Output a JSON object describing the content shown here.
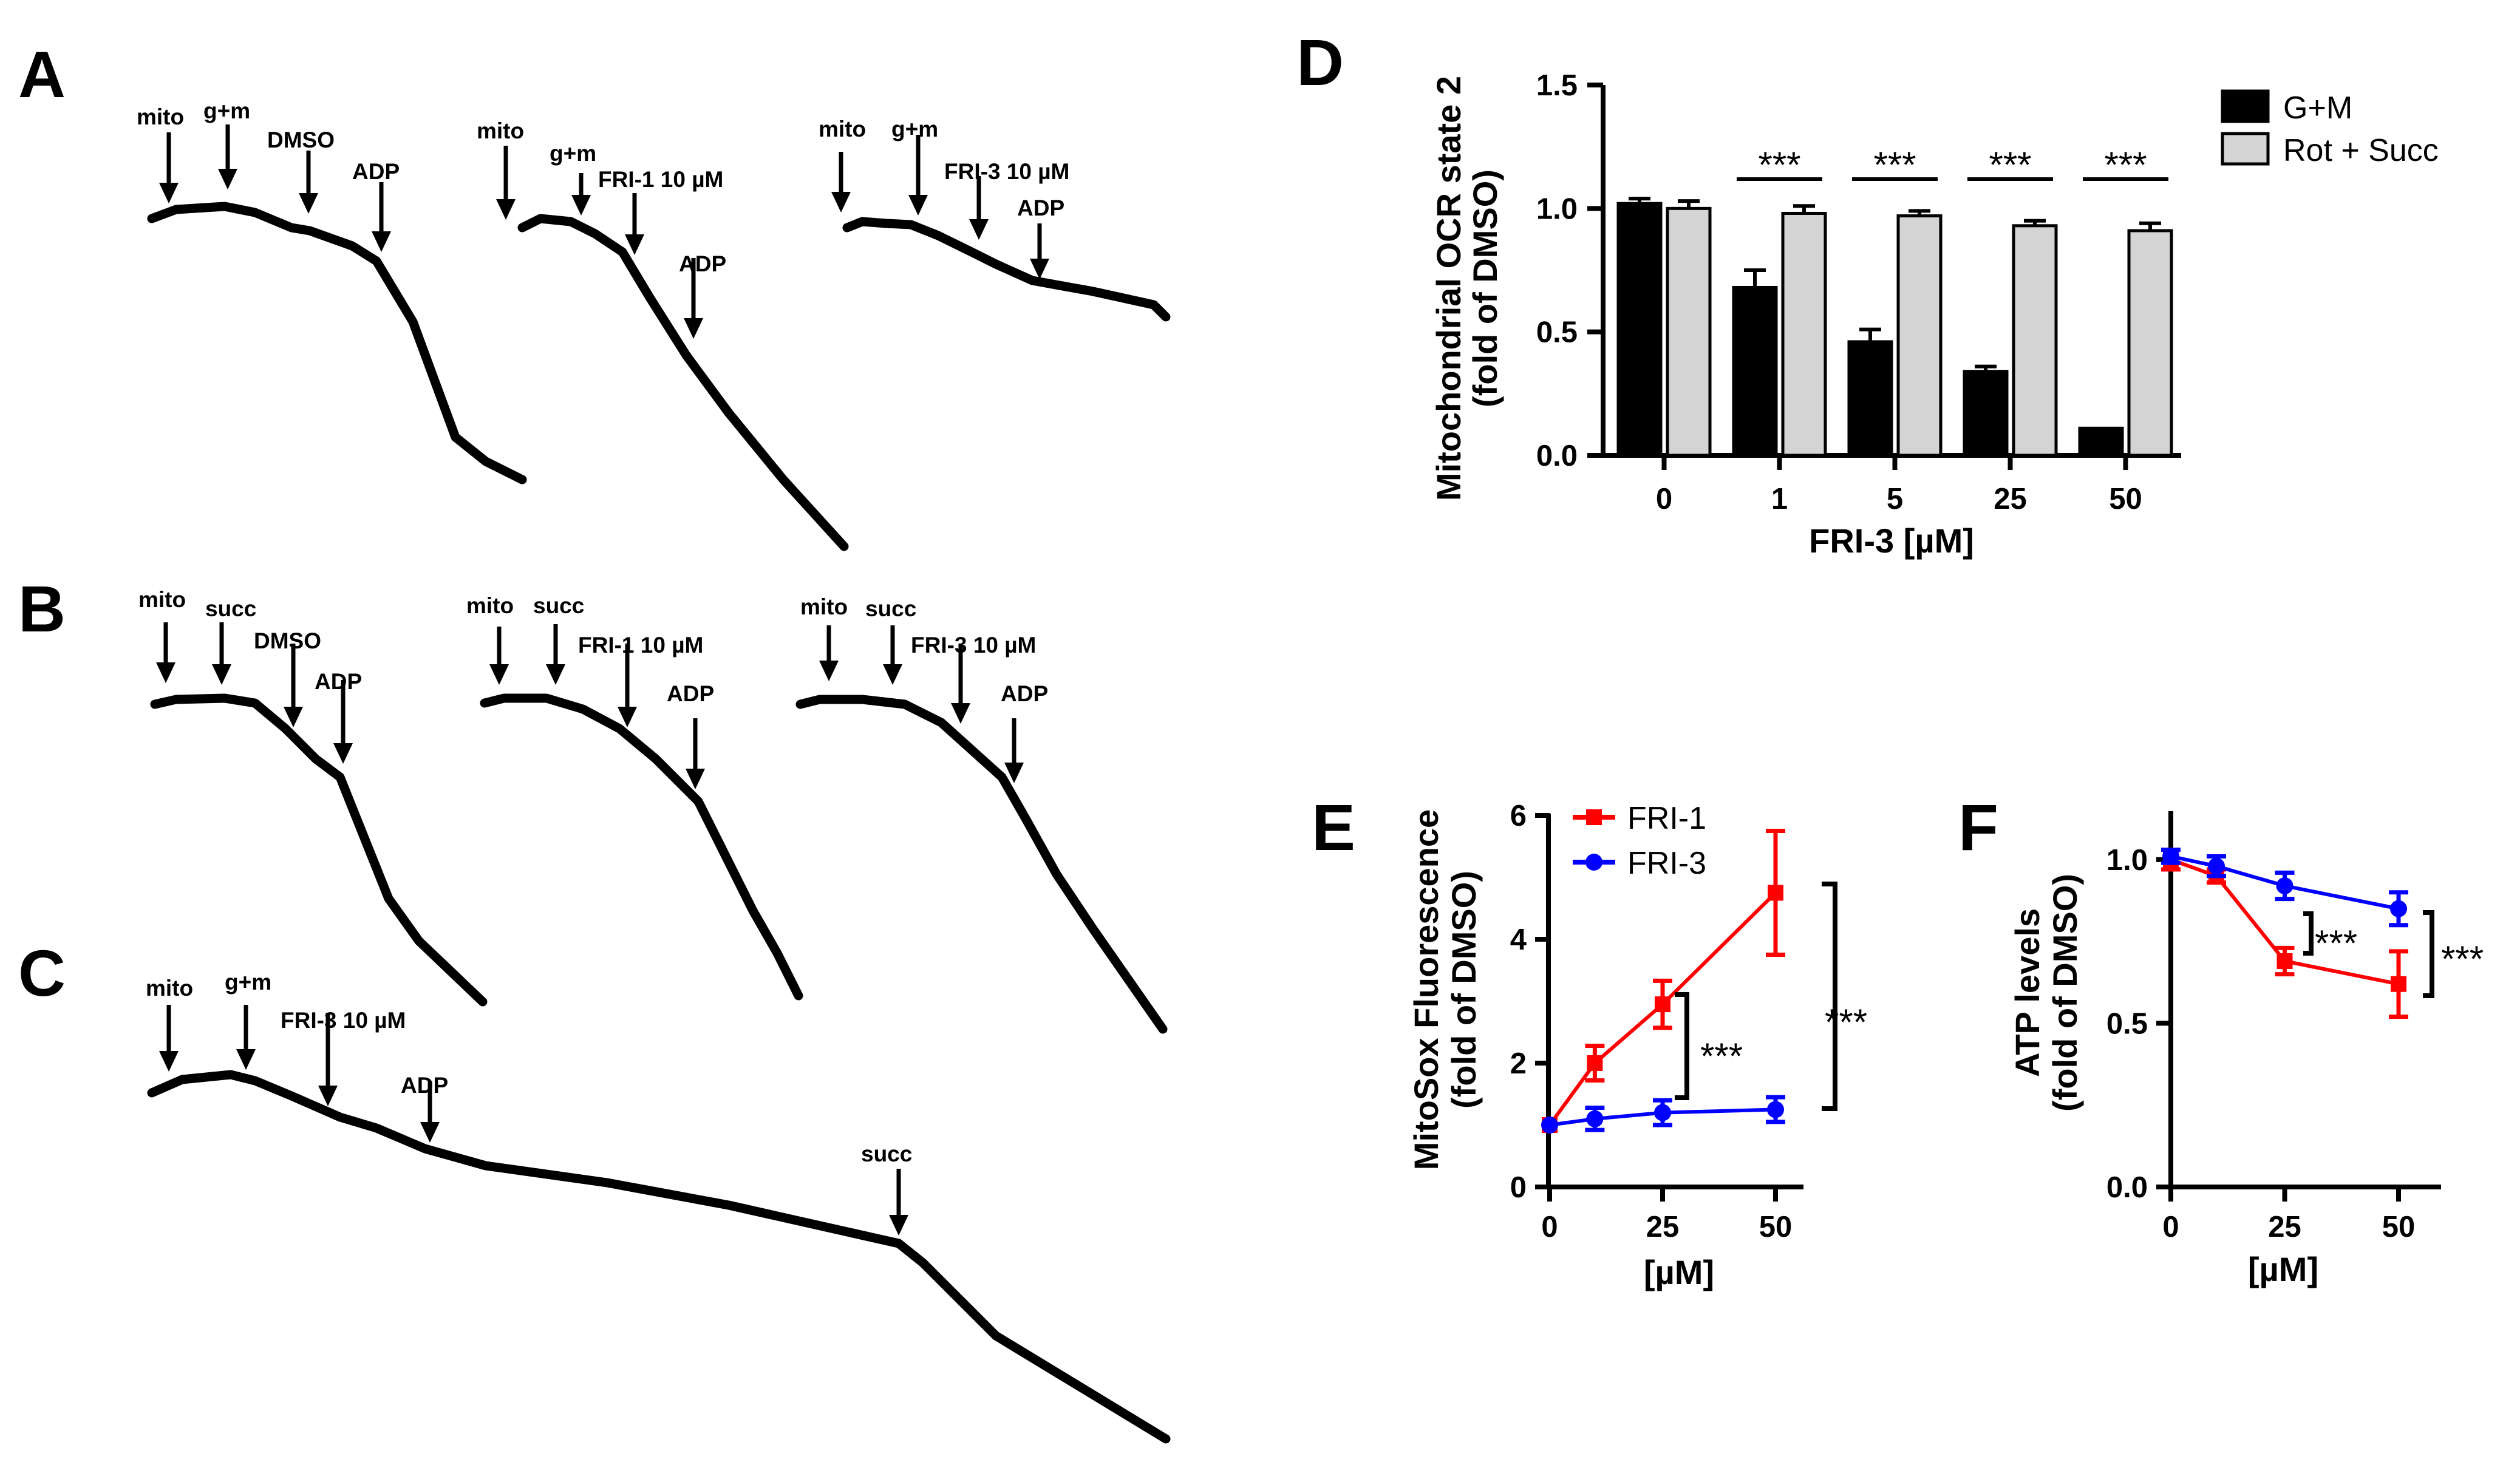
{
  "panels": {
    "A": {
      "letter": "A",
      "traces": [
        {
          "labels": [
            "mito",
            "g+m",
            "DMSO",
            "ADP"
          ]
        },
        {
          "labels": [
            "mito",
            "g+m",
            "FRI-1 10 µM",
            "ADP"
          ]
        },
        {
          "labels": [
            "mito",
            "g+m",
            "FRI-3 10 µM",
            "ADP"
          ]
        }
      ]
    },
    "B": {
      "letter": "B",
      "traces": [
        {
          "labels": [
            "mito",
            "succ",
            "DMSO",
            "ADP"
          ]
        },
        {
          "labels": [
            "mito",
            "succ",
            "FRI-1 10 µM",
            "ADP"
          ]
        },
        {
          "labels": [
            "mito",
            "succ",
            "FRI-3 10 µM",
            "ADP"
          ]
        }
      ]
    },
    "C": {
      "letter": "C",
      "traces": [
        {
          "labels": [
            "mito",
            "g+m",
            "FRI-3 10 µM",
            "ADP",
            "succ"
          ]
        }
      ]
    }
  },
  "chart_data": [
    {
      "panel": "D",
      "type": "bar",
      "title": "",
      "xlabel": "FRI-3 [µM]",
      "ylabel_line1": "Mitochondrial OCR state 2",
      "ylabel_line2": "(fold of DMSO)",
      "categories": [
        "0",
        "1",
        "5",
        "25",
        "50"
      ],
      "ylim": [
        0,
        1.5
      ],
      "yticks": [
        "0.0",
        "0.5",
        "1.0",
        "1.5"
      ],
      "series": [
        {
          "name": "G+M",
          "color": "#000000",
          "values": [
            1.02,
            0.68,
            0.46,
            0.34,
            0.11
          ],
          "errors": [
            0.02,
            0.07,
            0.05,
            0.02,
            0.0
          ]
        },
        {
          "name": "Rot + Succ",
          "color": "#d4d4d4",
          "values": [
            1.0,
            0.98,
            0.97,
            0.93,
            0.91
          ],
          "errors": [
            0.03,
            0.03,
            0.02,
            0.02,
            0.03
          ]
        }
      ],
      "significance": [
        "",
        "***",
        "***",
        "***",
        "***"
      ],
      "legend": "top-right"
    },
    {
      "panel": "E",
      "type": "line",
      "xlabel": "[µM]",
      "ylabel_line1": "MitoSox Fluorescence",
      "ylabel_line2": "(fold of DMSO)",
      "x": [
        0,
        10,
        25,
        50
      ],
      "xticks": [
        "0",
        "25",
        "50"
      ],
      "ylim": [
        0,
        6
      ],
      "yticks": [
        "0",
        "2",
        "4",
        "6"
      ],
      "series": [
        {
          "name": "FRI-1",
          "color": "#ff0000",
          "marker": "square",
          "values": [
            1.0,
            2.0,
            2.95,
            4.75
          ],
          "errors": [
            0.0,
            0.28,
            0.38,
            1.0
          ]
        },
        {
          "name": "FRI-3",
          "color": "#0000ff",
          "marker": "circle",
          "values": [
            1.0,
            1.1,
            1.2,
            1.25
          ],
          "errors": [
            0.0,
            0.18,
            0.2,
            0.2
          ]
        }
      ],
      "significance": [
        "***",
        "***"
      ],
      "legend": "top-left"
    },
    {
      "panel": "F",
      "type": "line",
      "xlabel": "[µM]",
      "ylabel_line1": "ATP levels",
      "ylabel_line2": "(fold of DMSO)",
      "x": [
        0,
        10,
        25,
        50
      ],
      "xticks": [
        "0",
        "25",
        "50"
      ],
      "ylim": [
        0,
        1.15
      ],
      "yticks": [
        "0.0",
        "0.5",
        "1.0"
      ],
      "series": [
        {
          "name": "FRI-1",
          "color": "#ff0000",
          "marker": "square",
          "values": [
            1.0,
            0.95,
            0.69,
            0.62
          ],
          "errors": [
            0.03,
            0.02,
            0.04,
            0.1
          ]
        },
        {
          "name": "FRI-3",
          "color": "#0000ff",
          "marker": "circle",
          "values": [
            1.01,
            0.98,
            0.92,
            0.85
          ],
          "errors": [
            0.02,
            0.03,
            0.04,
            0.05
          ]
        }
      ],
      "significance": [
        "***",
        "***"
      ]
    }
  ]
}
